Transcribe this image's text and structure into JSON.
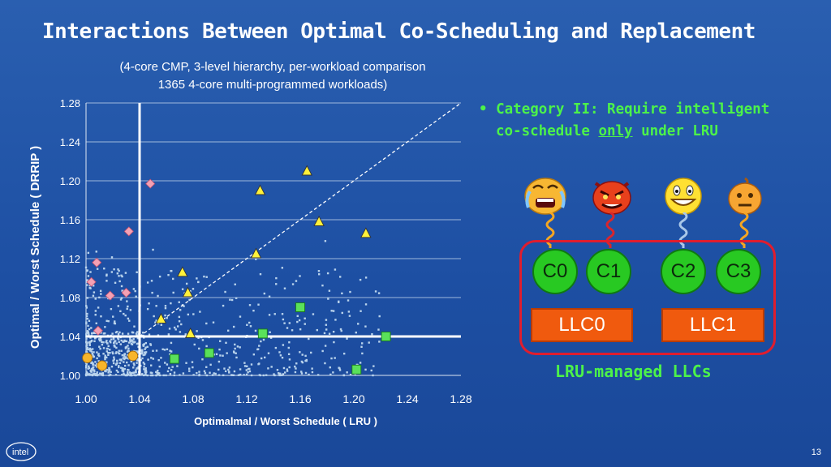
{
  "title": "Interactions Between Optimal Co-Scheduling and Replacement",
  "subtitle_lines": [
    "(4-core CMP, 3-level hierarchy, per-workload comparison",
    "1365 4-core multi-programmed workloads)"
  ],
  "bullet": {
    "marker": "•",
    "line1": "Category II:  Require intelligent",
    "line2_pre": "co-schedule ",
    "line2_emph": "only",
    "line2_post": " under LRU"
  },
  "cores": [
    "C0",
    "C1",
    "C2",
    "C3"
  ],
  "llcs": [
    "LLC0",
    "LLC1"
  ],
  "llc_caption": "LRU-managed LLCs",
  "logo_text": "intel",
  "page_number": "13",
  "colors": {
    "background": "#1d4fa3",
    "bullet_text": "#4cf24a",
    "core_fill": "#28c922",
    "llc_fill": "#f05a0e",
    "frame": "#e01d2e",
    "cloud_points": "#b9d3ec",
    "diamond": "#f4a1b4",
    "triangle": "#fff13a",
    "square": "#5ae15a",
    "circle": "#f7b52b"
  },
  "faces": [
    {
      "name": "crying-face-icon",
      "spring_color": "#f5a623"
    },
    {
      "name": "angry-devil-face-icon",
      "spring_color": "#d8262c"
    },
    {
      "name": "grinning-face-icon",
      "spring_color": "#a9c7e8"
    },
    {
      "name": "neutral-face-icon",
      "spring_color": "#f5a623"
    }
  ],
  "chart_data": {
    "type": "scatter",
    "title": "",
    "xlabel": "Optimalmal / Worst Schedule ( LRU )",
    "ylabel": "Optimal / Worst Schedule ( DRRIP )",
    "xlim": [
      1.0,
      1.28
    ],
    "ylim": [
      1.0,
      1.28
    ],
    "x_ticks": [
      "1.00",
      "1.04",
      "1.08",
      "1.12",
      "1.16",
      "1.20",
      "1.24",
      "1.28"
    ],
    "y_ticks": [
      "1.00",
      "1.04",
      "1.08",
      "1.12",
      "1.16",
      "1.20",
      "1.24",
      "1.28"
    ],
    "grid": "horizontal",
    "reference_lines": {
      "x": 1.04,
      "y": 1.04,
      "diagonal": "y = x (dashed)"
    },
    "series": [
      {
        "marker": "diamond",
        "points": [
          [
            1.048,
            1.197
          ],
          [
            1.032,
            1.148
          ],
          [
            1.008,
            1.116
          ],
          [
            1.004,
            1.096
          ],
          [
            1.018,
            1.082
          ],
          [
            1.03,
            1.085
          ],
          [
            1.009,
            1.046
          ]
        ]
      },
      {
        "marker": "triangle",
        "points": [
          [
            1.165,
            1.21
          ],
          [
            1.13,
            1.19
          ],
          [
            1.174,
            1.158
          ],
          [
            1.209,
            1.146
          ],
          [
            1.127,
            1.125
          ],
          [
            1.072,
            1.106
          ],
          [
            1.076,
            1.085
          ],
          [
            1.056,
            1.058
          ],
          [
            1.078,
            1.043
          ]
        ]
      },
      {
        "marker": "square",
        "points": [
          [
            1.16,
            1.07
          ],
          [
            1.132,
            1.043
          ],
          [
            1.224,
            1.04
          ],
          [
            1.066,
            1.017
          ],
          [
            1.092,
            1.023
          ],
          [
            1.202,
            1.006
          ]
        ]
      },
      {
        "marker": "circle",
        "points": [
          [
            1.001,
            1.018
          ],
          [
            1.012,
            1.01
          ],
          [
            1.035,
            1.02
          ]
        ]
      }
    ]
  }
}
